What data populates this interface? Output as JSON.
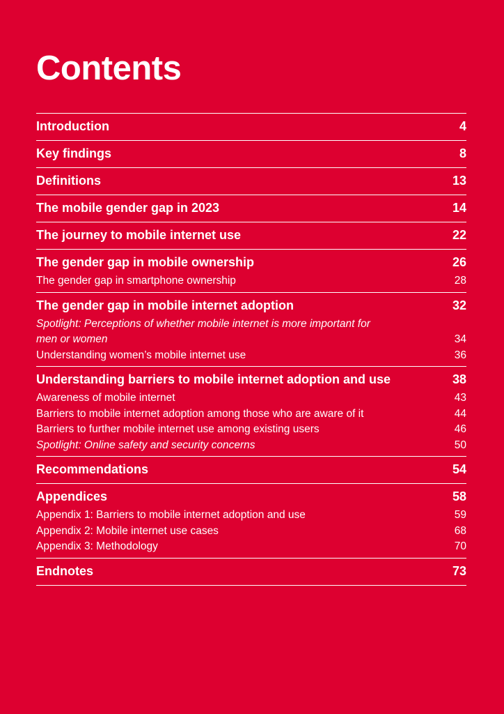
{
  "title": "Contents",
  "sections": [
    {
      "label": "Introduction",
      "page": "4",
      "subs": []
    },
    {
      "label": "Key findings",
      "page": "8",
      "subs": []
    },
    {
      "label": "Definitions",
      "page": "13",
      "subs": []
    },
    {
      "label": "The mobile gender gap in 2023",
      "page": "14",
      "subs": []
    },
    {
      "label": "The journey to mobile internet use",
      "page": "22",
      "subs": []
    },
    {
      "label": "The gender gap in mobile ownership",
      "page": "26",
      "subs": [
        {
          "label": "The gender gap in smartphone ownership",
          "page": "28",
          "italic": false
        }
      ]
    },
    {
      "label": "The gender gap in mobile internet adoption",
      "page": "32",
      "subs": [
        {
          "label": "Spotlight: Perceptions of whether mobile internet is more important for men or women",
          "page": "34",
          "italic": true
        },
        {
          "label": "Understanding women’s mobile internet use",
          "page": "36",
          "italic": false
        }
      ]
    },
    {
      "label": "Understanding barriers to mobile internet adoption and use",
      "page": "38",
      "subs": [
        {
          "label": "Awareness of mobile internet",
          "page": "43",
          "italic": false
        },
        {
          "label": "Barriers to mobile internet adoption among those who are aware of it",
          "page": "44",
          "italic": false
        },
        {
          "label": "Barriers to further mobile internet use among existing users",
          "page": "46",
          "italic": false
        },
        {
          "label": "Spotlight: Online safety and security concerns",
          "page": "50",
          "italic": true
        }
      ]
    },
    {
      "label": "Recommendations",
      "page": "54",
      "subs": []
    },
    {
      "label": "Appendices",
      "page": "58",
      "subs": [
        {
          "label": "Appendix 1: Barriers to mobile internet adoption and use",
          "page": "59",
          "italic": false
        },
        {
          "label": "Appendix 2: Mobile internet use cases",
          "page": "68",
          "italic": false
        },
        {
          "label": "Appendix 3: Methodology",
          "page": "70",
          "italic": false
        }
      ]
    },
    {
      "label": "Endnotes",
      "page": "73",
      "subs": []
    }
  ]
}
